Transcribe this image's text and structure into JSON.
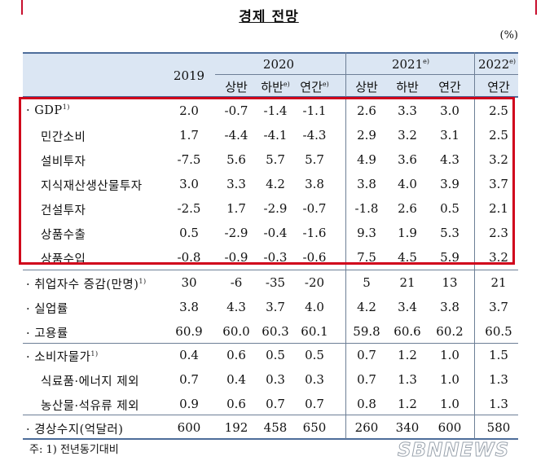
{
  "title": "경제 전망",
  "unit": "(%)",
  "header": {
    "y2019": "2019",
    "y2020": "2020",
    "y2021": "2021",
    "y2021_mark": "e)",
    "y2022": "2022",
    "y2022_mark": "e)",
    "sub": [
      {
        "text": "상반",
        "mark": ""
      },
      {
        "text": "하반",
        "mark": "e)"
      },
      {
        "text": "연간",
        "mark": "e)"
      },
      {
        "text": "상반",
        "mark": ""
      },
      {
        "text": "하반",
        "mark": ""
      },
      {
        "text": "연간",
        "mark": ""
      },
      {
        "text": "연간",
        "mark": ""
      }
    ]
  },
  "rows": [
    {
      "label": "· GDP",
      "mark": "1)",
      "indent": false,
      "values": [
        "2.0",
        "-0.7",
        "-1.4",
        "-1.1",
        "2.6",
        "3.3",
        "3.0",
        "2.5"
      ]
    },
    {
      "label": "민간소비",
      "mark": "",
      "indent": true,
      "values": [
        "1.7",
        "-4.4",
        "-4.1",
        "-4.3",
        "2.9",
        "3.2",
        "3.1",
        "2.5"
      ]
    },
    {
      "label": "설비투자",
      "mark": "",
      "indent": true,
      "values": [
        "-7.5",
        "5.6",
        "5.7",
        "5.7",
        "4.9",
        "3.6",
        "4.3",
        "3.2"
      ]
    },
    {
      "label": "지식재산생산물투자",
      "mark": "",
      "indent": true,
      "values": [
        "3.0",
        "3.3",
        "4.2",
        "3.8",
        "3.8",
        "4.0",
        "3.9",
        "3.7"
      ]
    },
    {
      "label": "건설투자",
      "mark": "",
      "indent": true,
      "values": [
        "-2.5",
        "1.7",
        "-2.9",
        "-0.7",
        "-1.8",
        "2.6",
        "0.5",
        "2.1"
      ]
    },
    {
      "label": "상품수출",
      "mark": "",
      "indent": true,
      "values": [
        "0.5",
        "-2.9",
        "-0.4",
        "-1.6",
        "9.3",
        "1.9",
        "5.3",
        "2.3"
      ]
    },
    {
      "label": "상품수입",
      "mark": "",
      "indent": true,
      "values": [
        "-0.8",
        "-0.9",
        "-0.3",
        "-0.6",
        "7.5",
        "4.5",
        "5.9",
        "3.2"
      ]
    },
    {
      "label": "· 취업자수 증감(만명)",
      "mark": "1)",
      "indent": false,
      "values": [
        "30",
        "-6",
        "-35",
        "-20",
        "5",
        "21",
        "13",
        "21"
      ]
    },
    {
      "label": "· 실업률",
      "mark": "",
      "indent": false,
      "values": [
        "3.8",
        "4.3",
        "3.7",
        "4.0",
        "4.2",
        "3.4",
        "3.8",
        "3.7"
      ]
    },
    {
      "label": "· 고용률",
      "mark": "",
      "indent": false,
      "values": [
        "60.9",
        "60.0",
        "60.3",
        "60.1",
        "59.8",
        "60.6",
        "60.2",
        "60.5"
      ]
    },
    {
      "label": "· 소비자물가",
      "mark": "1)",
      "indent": false,
      "values": [
        "0.4",
        "0.6",
        "0.5",
        "0.5",
        "0.7",
        "1.2",
        "1.0",
        "1.5"
      ]
    },
    {
      "label": "식료품·에너지 제외",
      "mark": "",
      "indent": true,
      "values": [
        "0.7",
        "0.4",
        "0.3",
        "0.3",
        "0.7",
        "1.3",
        "1.0",
        "1.3"
      ]
    },
    {
      "label": "농산물·석유류 제외",
      "mark": "",
      "indent": true,
      "values": [
        "0.9",
        "0.6",
        "0.7",
        "0.7",
        "0.8",
        "1.2",
        "1.0",
        "1.3"
      ]
    },
    {
      "label": "· 경상수지(억달러)",
      "mark": "",
      "indent": false,
      "values": [
        "600",
        "192",
        "458",
        "650",
        "260",
        "340",
        "600",
        "580"
      ]
    }
  ],
  "note": "주: 1) 전년동기대비",
  "watermark": "SBNNEWS"
}
